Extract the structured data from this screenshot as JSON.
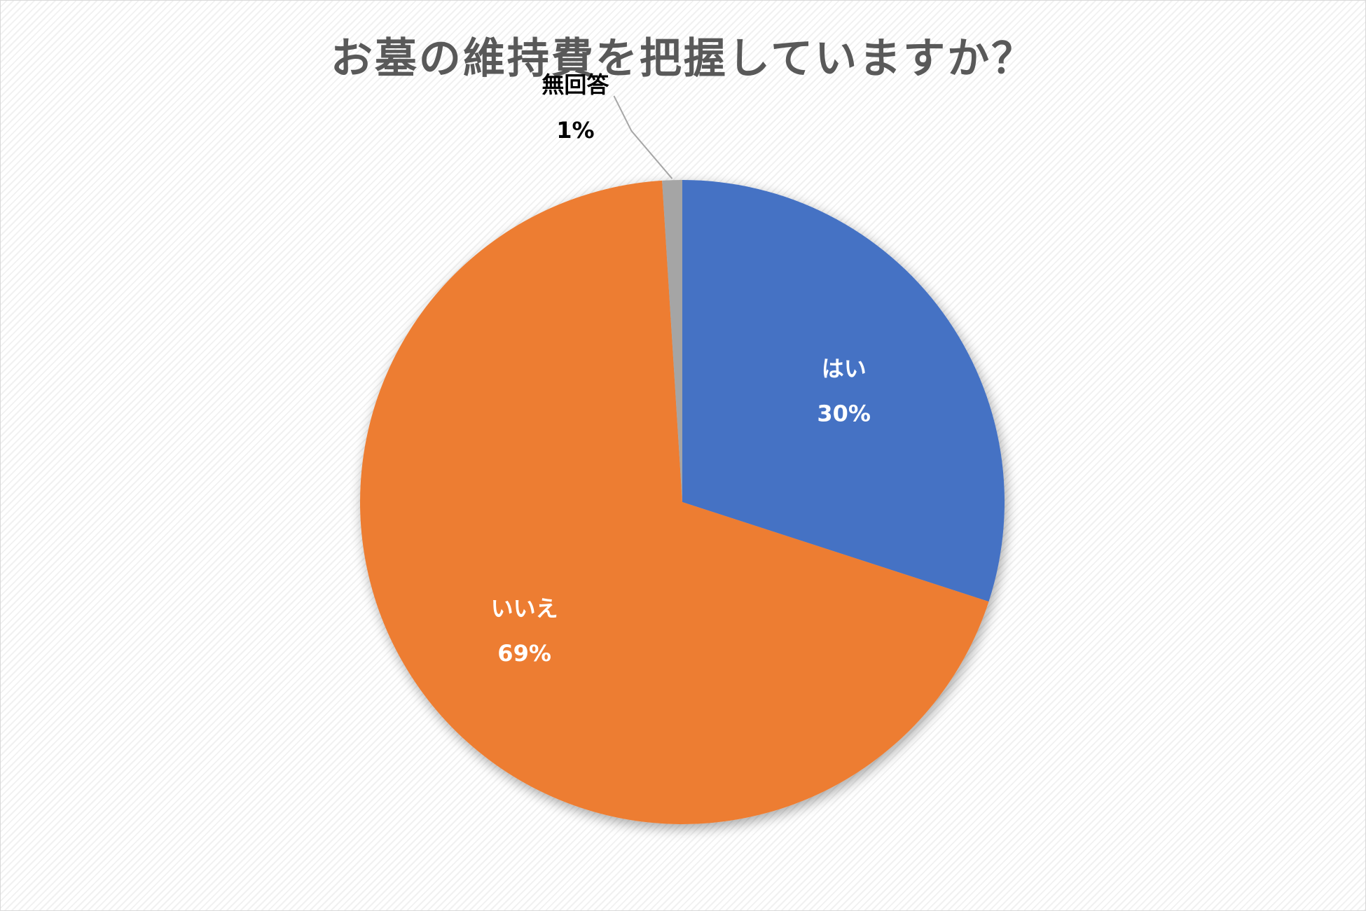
{
  "chart_data": {
    "type": "pie",
    "title": "お墓の維持費を把握していますか？",
    "slices": [
      {
        "label": "はい",
        "value": 30,
        "value_label": "30%",
        "color": "#4472C4",
        "label_color": "#ffffff"
      },
      {
        "label": "いいえ",
        "value": 69,
        "value_label": "69%",
        "color": "#ED7D31",
        "label_color": "#ffffff"
      },
      {
        "label": "無回答",
        "value": 1,
        "value_label": "1%",
        "color": "#A5A5A5",
        "label_color": "#000000"
      }
    ],
    "start_angle": "12 o'clock",
    "direction": "clockwise",
    "legend": "none",
    "data_labels": "category name and percentage"
  }
}
